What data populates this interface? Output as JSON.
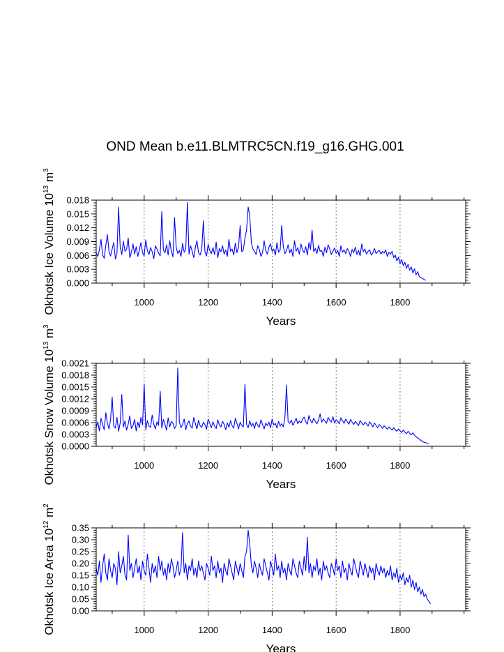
{
  "figure": {
    "title": "OND Mean b.e11.BLMTRC5CN.f19_g16.GHG.001"
  },
  "chart_data": [
    {
      "type": "line",
      "title": "OND Mean b.e11.BLMTRC5CN.f19_g16.GHG.001",
      "xlabel": "Years",
      "ylabel": {
        "text": "Okhotsk Ice Volume 10",
        "exp": "13",
        "unit": " m",
        "unit_exp": "3"
      },
      "xlim": [
        850,
        2005
      ],
      "ylim": [
        0,
        0.018
      ],
      "x_ticks": [
        1000,
        1200,
        1400,
        1600,
        1800
      ],
      "x_tick_labels": [
        "1000",
        "1200",
        "1400",
        "1600",
        "1800"
      ],
      "y_ticks": [
        0,
        0.003,
        0.006,
        0.009,
        0.012,
        0.015,
        0.018
      ],
      "y_tick_labels": [
        "0.000",
        "0.003",
        "0.006",
        "0.009",
        "0.012",
        "0.015",
        "0.018"
      ],
      "grid": "vertical dashed at major x ticks",
      "series_color": "#0000ff",
      "series": [
        {
          "x_start": 850,
          "x_step": 5,
          "values": [
            0.0065,
            0.0058,
            0.0072,
            0.0095,
            0.0061,
            0.0054,
            0.0082,
            0.0105,
            0.0068,
            0.0059,
            0.0074,
            0.0088,
            0.0052,
            0.0065,
            0.0165,
            0.0078,
            0.0062,
            0.0091,
            0.0069,
            0.0073,
            0.0098,
            0.0055,
            0.0067,
            0.0085,
            0.0063,
            0.0079,
            0.0058,
            0.0072,
            0.0088,
            0.0066,
            0.0059,
            0.0094,
            0.0071,
            0.0062,
            0.0077,
            0.0068,
            0.0053,
            0.0081,
            0.0074,
            0.0065,
            0.0059,
            0.0155,
            0.0072,
            0.0066,
            0.0083,
            0.0061,
            0.0092,
            0.0069,
            0.0057,
            0.0142,
            0.0078,
            0.0064,
            0.0071,
            0.0058,
            0.0086,
            0.0067,
            0.0074,
            0.0175,
            0.0063,
            0.0081,
            0.0069,
            0.0055,
            0.0078,
            0.0092,
            0.0066,
            0.0061,
            0.0073,
            0.0135,
            0.0068,
            0.0059,
            0.0084,
            0.0071,
            0.0064,
            0.0077,
            0.0062,
            0.0089,
            0.0055,
            0.0075,
            0.0068,
            0.0081,
            0.0063,
            0.0072,
            0.0058,
            0.0095,
            0.0069,
            0.0074,
            0.0061,
            0.0087,
            0.0066,
            0.0079,
            0.0125,
            0.0068,
            0.0072,
            0.0098,
            0.0115,
            0.0165,
            0.0145,
            0.0088,
            0.0074,
            0.0069,
            0.0062,
            0.0081,
            0.0073,
            0.0058,
            0.0066,
            0.0092,
            0.0071,
            0.0063,
            0.0078,
            0.0085,
            0.0069,
            0.0074,
            0.0061,
            0.0088,
            0.0067,
            0.0072,
            0.0125,
            0.0079,
            0.0064,
            0.0071,
            0.0083,
            0.0066,
            0.0074,
            0.0058,
            0.0092,
            0.0069,
            0.0077,
            0.0063,
            0.0085,
            0.0072,
            0.0066,
            0.0079,
            0.0061,
            0.0088,
            0.0073,
            0.0115,
            0.0068,
            0.0075,
            0.0064,
            0.0082,
            0.0069,
            0.0071,
            0.0058,
            0.0078,
            0.0066,
            0.0083,
            0.0074,
            0.0062,
            0.0069,
            0.0076,
            0.0065,
            0.0071,
            0.0058,
            0.0081,
            0.0067,
            0.0072,
            0.0064,
            0.0075,
            0.0069,
            0.0058,
            0.0073,
            0.0066,
            0.0078,
            0.0062,
            0.0071,
            0.0059,
            0.0085,
            0.0068,
            0.0074,
            0.0063,
            0.0069,
            0.0072,
            0.0061,
            0.0066,
            0.0075,
            0.0064,
            0.0068,
            0.0071,
            0.0063,
            0.0069,
            0.0065,
            0.0072,
            0.0058,
            0.0067,
            0.0063,
            0.0069,
            0.0055,
            0.0061,
            0.0048,
            0.0056,
            0.0042,
            0.0051,
            0.0038,
            0.0045,
            0.0032,
            0.0041,
            0.0028,
            0.0035,
            0.0022,
            0.0031,
            0.0018,
            0.0025,
            0.0014,
            0.0012,
            0.001,
            0.0008,
            0.0006
          ]
        }
      ]
    },
    {
      "type": "line",
      "xlabel": "Years",
      "ylabel": {
        "text": "Okhotsk Snow Volume 10",
        "exp": "13",
        "unit": " m",
        "unit_exp": "3"
      },
      "xlim": [
        850,
        2005
      ],
      "ylim": [
        0,
        0.0021
      ],
      "x_ticks": [
        1000,
        1200,
        1400,
        1600,
        1800
      ],
      "x_tick_labels": [
        "1000",
        "1200",
        "1400",
        "1600",
        "1800"
      ],
      "y_ticks": [
        0,
        0.0003,
        0.0006,
        0.0009,
        0.0012,
        0.0015,
        0.0018,
        0.0021
      ],
      "y_tick_labels": [
        "0.0000",
        "0.0003",
        "0.0006",
        "0.0009",
        "0.0012",
        "0.0015",
        "0.0018",
        "0.0021"
      ],
      "grid": "vertical dashed at major x ticks",
      "series_color": "#0000ff",
      "series": [
        {
          "x_start": 850,
          "x_step": 5,
          "values": [
            0.00048,
            0.00062,
            0.00039,
            0.00071,
            0.00055,
            0.00042,
            0.00085,
            0.00058,
            0.00044,
            0.00067,
            0.00125,
            0.00051,
            0.00046,
            0.00073,
            0.00038,
            0.00059,
            0.00131,
            0.00049,
            0.00064,
            0.00041,
            0.00056,
            0.00077,
            0.00045,
            0.00052,
            0.00068,
            0.00039,
            0.00061,
            0.00047,
            0.00073,
            0.00054,
            0.00158,
            0.00042,
            0.00065,
            0.00051,
            0.00048,
            0.00079,
            0.00056,
            0.00044,
            0.00062,
            0.00053,
            0.00139,
            0.00046,
            0.00068,
            0.00055,
            0.00041,
            0.00072,
            0.00049,
            0.00063,
            0.00058,
            0.00045,
            0.00052,
            0.00198,
            0.00061,
            0.00047,
            0.00055,
            0.00069,
            0.00042,
            0.00058,
            0.00064,
            0.00051,
            0.00046,
            0.00073,
            0.00057,
            0.00044,
            0.00066,
            0.00052,
            0.00048,
            0.00061,
            0.00055,
            0.00043,
            0.00069,
            0.00058,
            0.00047,
            0.00062,
            0.00051,
            0.00045,
            0.00067,
            0.00054,
            0.00049,
            0.00063,
            0.00056,
            0.00042,
            0.00059,
            0.00048,
            0.00065,
            0.00052,
            0.00046,
            0.00071,
            0.00058,
            0.00044,
            0.00061,
            0.00053,
            0.00049,
            0.00157,
            0.00055,
            0.00047,
            0.00064,
            0.00051,
            0.00058,
            0.00045,
            0.00062,
            0.00053,
            0.00048,
            0.00067,
            0.00055,
            0.00044,
            0.00059,
            0.00052,
            0.00061,
            0.00047,
            0.00069,
            0.00054,
            0.00058,
            0.00046,
            0.00063,
            0.00051,
            0.00057,
            0.00049,
            0.00072,
            0.00155,
            0.00062,
            0.00058,
            0.00066,
            0.00053,
            0.00061,
            0.00071,
            0.00057,
            0.00064,
            0.00059,
            0.00068,
            0.00074,
            0.00062,
            0.00056,
            0.00078,
            0.00065,
            0.00059,
            0.00071,
            0.00063,
            0.00057,
            0.00066,
            0.00082,
            0.00061,
            0.00069,
            0.00064,
            0.00058,
            0.00073,
            0.00066,
            0.00061,
            0.00075,
            0.00059,
            0.00067,
            0.00063,
            0.00057,
            0.00072,
            0.00065,
            0.00058,
            0.00069,
            0.00062,
            0.00056,
            0.00068,
            0.00061,
            0.00055,
            0.00063,
            0.00058,
            0.00052,
            0.00065,
            0.00059,
            0.00054,
            0.00061,
            0.00057,
            0.00051,
            0.00062,
            0.00056,
            0.00049,
            0.00059,
            0.00053,
            0.00047,
            0.00055,
            0.00051,
            0.00045,
            0.00052,
            0.00048,
            0.00043,
            0.00049,
            0.00045,
            0.00041,
            0.00047,
            0.00042,
            0.00038,
            0.00044,
            0.00039,
            0.00035,
            0.00041,
            0.00036,
            0.00032,
            0.00038,
            0.00033,
            0.00029,
            0.00034,
            0.00028,
            0.00024,
            0.00021,
            0.00018,
            0.00015,
            0.00012,
            0.0001,
            9e-05,
            8e-05,
            7e-05
          ]
        }
      ]
    },
    {
      "type": "line",
      "xlabel": "Years",
      "ylabel": {
        "text": "Okhotsk Ice Area 10",
        "exp": "12",
        "unit": " m",
        "unit_exp": "2"
      },
      "xlim": [
        850,
        2005
      ],
      "ylim": [
        0,
        0.35
      ],
      "x_ticks": [
        1000,
        1200,
        1400,
        1600,
        1800
      ],
      "x_tick_labels": [
        "1000",
        "1200",
        "1400",
        "1600",
        "1800"
      ],
      "y_ticks": [
        0,
        0.05,
        0.1,
        0.15,
        0.2,
        0.25,
        0.3,
        0.35
      ],
      "y_tick_labels": [
        "0.00",
        "0.05",
        "0.10",
        "0.15",
        "0.20",
        "0.25",
        "0.30",
        "0.35"
      ],
      "grid": "vertical dashed at major x ticks",
      "series_color": "#0000ff",
      "series": [
        {
          "x_start": 850,
          "x_step": 5,
          "values": [
            0.18,
            0.15,
            0.21,
            0.12,
            0.19,
            0.24,
            0.16,
            0.13,
            0.22,
            0.17,
            0.14,
            0.2,
            0.18,
            0.11,
            0.25,
            0.16,
            0.19,
            0.23,
            0.15,
            0.13,
            0.32,
            0.17,
            0.2,
            0.14,
            0.18,
            0.22,
            0.16,
            0.19,
            0.13,
            0.21,
            0.17,
            0.15,
            0.24,
            0.18,
            0.12,
            0.2,
            0.16,
            0.19,
            0.14,
            0.23,
            0.17,
            0.21,
            0.15,
            0.18,
            0.13,
            0.2,
            0.16,
            0.22,
            0.19,
            0.14,
            0.17,
            0.21,
            0.15,
            0.18,
            0.33,
            0.16,
            0.2,
            0.13,
            0.19,
            0.17,
            0.22,
            0.15,
            0.18,
            0.14,
            0.21,
            0.17,
            0.19,
            0.16,
            0.13,
            0.2,
            0.18,
            0.15,
            0.23,
            0.17,
            0.19,
            0.14,
            0.21,
            0.16,
            0.18,
            0.12,
            0.2,
            0.17,
            0.15,
            0.22,
            0.19,
            0.16,
            0.13,
            0.21,
            0.18,
            0.15,
            0.2,
            0.17,
            0.14,
            0.23,
            0.25,
            0.34,
            0.28,
            0.19,
            0.16,
            0.21,
            0.18,
            0.14,
            0.2,
            0.17,
            0.15,
            0.22,
            0.19,
            0.16,
            0.13,
            0.21,
            0.18,
            0.15,
            0.24,
            0.17,
            0.19,
            0.14,
            0.21,
            0.16,
            0.18,
            0.13,
            0.2,
            0.17,
            0.15,
            0.22,
            0.19,
            0.16,
            0.14,
            0.21,
            0.18,
            0.15,
            0.23,
            0.17,
            0.31,
            0.16,
            0.2,
            0.14,
            0.19,
            0.17,
            0.22,
            0.15,
            0.18,
            0.13,
            0.21,
            0.17,
            0.19,
            0.16,
            0.14,
            0.2,
            0.18,
            0.15,
            0.22,
            0.17,
            0.19,
            0.14,
            0.21,
            0.16,
            0.18,
            0.13,
            0.2,
            0.17,
            0.15,
            0.22,
            0.19,
            0.16,
            0.14,
            0.21,
            0.18,
            0.15,
            0.2,
            0.17,
            0.14,
            0.19,
            0.16,
            0.18,
            0.13,
            0.2,
            0.17,
            0.15,
            0.19,
            0.16,
            0.18,
            0.14,
            0.17,
            0.15,
            0.19,
            0.13,
            0.16,
            0.14,
            0.18,
            0.12,
            0.15,
            0.13,
            0.16,
            0.11,
            0.14,
            0.12,
            0.15,
            0.1,
            0.13,
            0.09,
            0.12,
            0.08,
            0.1,
            0.07,
            0.09,
            0.06,
            0.07,
            0.05,
            0.04,
            0.03
          ]
        }
      ]
    }
  ]
}
